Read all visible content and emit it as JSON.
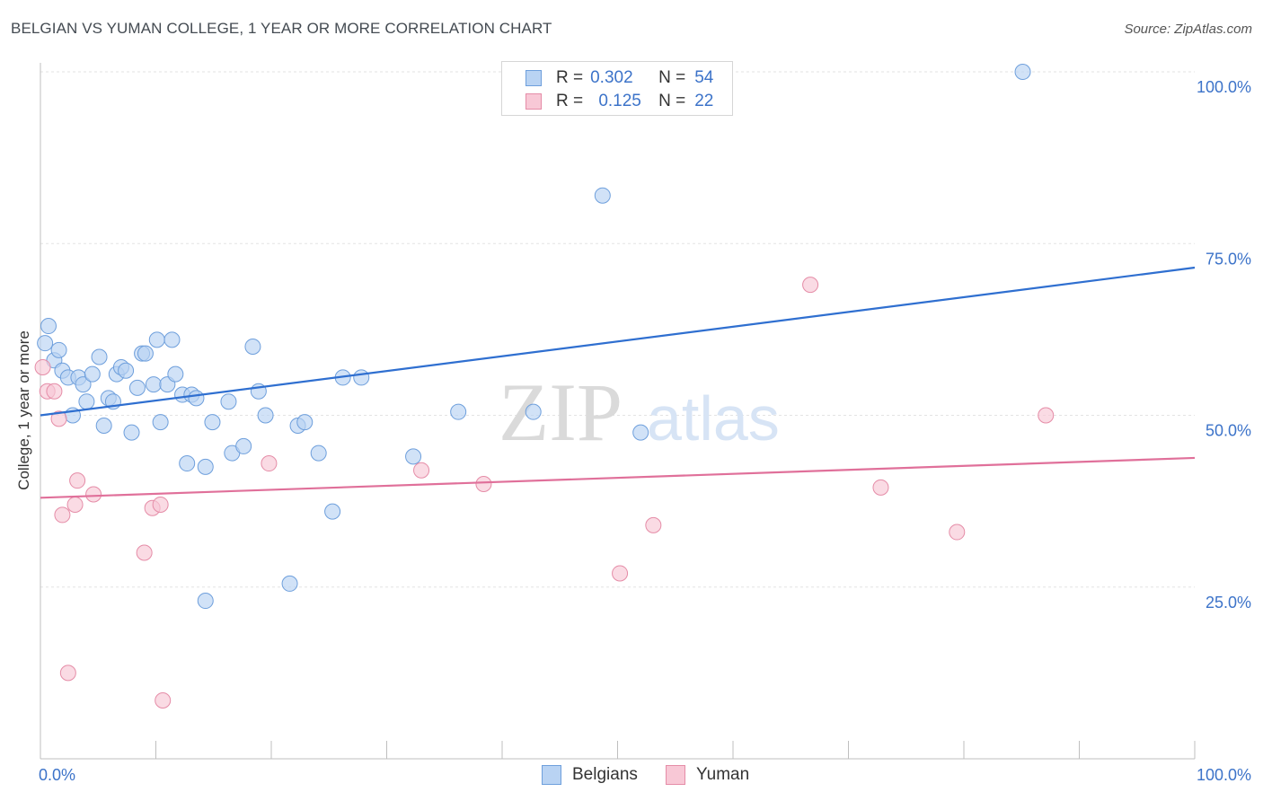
{
  "header": {
    "title": "BELGIAN VS YUMAN COLLEGE, 1 YEAR OR MORE CORRELATION CHART",
    "source": "Source: ZipAtlas.com"
  },
  "legend": {
    "r_label": "R =",
    "n_label": "N =",
    "items": [
      {
        "name": "Belgians",
        "r": "0.302",
        "n": "54"
      },
      {
        "name": "Yuman",
        "r": "0.125",
        "n": "22"
      }
    ]
  },
  "watermark": {
    "zip": "ZIP",
    "atlas": "atlas"
  },
  "colors": {
    "blue_fill": "#b9d3f3",
    "blue_stroke": "#6e9fdc",
    "blue_line": "#2f6fd0",
    "pink_fill": "#f8c8d6",
    "pink_stroke": "#e58ca7",
    "pink_line": "#e0709a",
    "tick_text": "#3c73c9",
    "grid": "#e3e3e3"
  },
  "chart_data": {
    "type": "scatter",
    "title": "BELGIAN VS YUMAN COLLEGE, 1 YEAR OR MORE CORRELATION CHART",
    "xlabel": "",
    "ylabel": "College, 1 year or more",
    "xlim": [
      0,
      100
    ],
    "ylim": [
      0,
      100
    ],
    "x_tick_labels": [
      {
        "value": 0,
        "label": "0.0%"
      },
      {
        "value": 100,
        "label": "100.0%"
      }
    ],
    "y_tick_labels": [
      {
        "value": 25,
        "label": "25.0%"
      },
      {
        "value": 50,
        "label": "50.0%"
      },
      {
        "value": 75,
        "label": "75.0%"
      },
      {
        "value": 100,
        "label": "100.0%"
      }
    ],
    "series": [
      {
        "name": "Belgians",
        "color": "#6e9fdc",
        "trend": {
          "x0": 0,
          "y0": 50.0,
          "x1": 100,
          "y1": 71.5
        },
        "points": [
          [
            0.4,
            60.5
          ],
          [
            0.7,
            63.0
          ],
          [
            1.2,
            58.0
          ],
          [
            1.6,
            59.5
          ],
          [
            1.9,
            56.5
          ],
          [
            2.4,
            55.5
          ],
          [
            2.8,
            50.0
          ],
          [
            3.3,
            55.5
          ],
          [
            3.7,
            54.5
          ],
          [
            4.0,
            52.0
          ],
          [
            4.5,
            56.0
          ],
          [
            5.1,
            58.5
          ],
          [
            5.5,
            48.5
          ],
          [
            5.9,
            52.5
          ],
          [
            6.3,
            52.0
          ],
          [
            6.6,
            56.0
          ],
          [
            7.0,
            57.0
          ],
          [
            7.4,
            56.5
          ],
          [
            7.9,
            47.5
          ],
          [
            8.4,
            54.0
          ],
          [
            8.8,
            59.0
          ],
          [
            9.1,
            59.0
          ],
          [
            9.8,
            54.5
          ],
          [
            10.1,
            61.0
          ],
          [
            10.4,
            49.0
          ],
          [
            11.0,
            54.5
          ],
          [
            11.4,
            61.0
          ],
          [
            11.7,
            56.0
          ],
          [
            12.3,
            53.0
          ],
          [
            12.7,
            43.0
          ],
          [
            13.1,
            53.0
          ],
          [
            13.5,
            52.5
          ],
          [
            14.3,
            42.5
          ],
          [
            14.3,
            23.0
          ],
          [
            14.9,
            49.0
          ],
          [
            16.3,
            52.0
          ],
          [
            16.6,
            44.5
          ],
          [
            17.6,
            45.5
          ],
          [
            18.4,
            60.0
          ],
          [
            18.9,
            53.5
          ],
          [
            19.5,
            50.0
          ],
          [
            21.6,
            25.5
          ],
          [
            22.3,
            48.5
          ],
          [
            22.9,
            49.0
          ],
          [
            24.1,
            44.5
          ],
          [
            25.3,
            36.0
          ],
          [
            26.2,
            55.5
          ],
          [
            27.8,
            55.5
          ],
          [
            32.3,
            44.0
          ],
          [
            36.2,
            50.5
          ],
          [
            42.7,
            50.5
          ],
          [
            48.7,
            82.0
          ],
          [
            52.0,
            47.5
          ],
          [
            85.1,
            100.0
          ]
        ]
      },
      {
        "name": "Yuman",
        "color": "#e58ca7",
        "trend": {
          "x0": 0,
          "y0": 38.0,
          "x1": 100,
          "y1": 43.8
        },
        "points": [
          [
            0.2,
            57.0
          ],
          [
            0.6,
            53.5
          ],
          [
            1.2,
            53.5
          ],
          [
            1.6,
            49.5
          ],
          [
            1.9,
            35.5
          ],
          [
            2.4,
            12.5
          ],
          [
            3.0,
            37.0
          ],
          [
            3.2,
            40.5
          ],
          [
            4.6,
            38.5
          ],
          [
            9.0,
            30.0
          ],
          [
            9.7,
            36.5
          ],
          [
            10.4,
            37.0
          ],
          [
            10.6,
            8.5
          ],
          [
            19.8,
            43.0
          ],
          [
            33.0,
            42.0
          ],
          [
            38.4,
            40.0
          ],
          [
            50.2,
            27.0
          ],
          [
            53.1,
            34.0
          ],
          [
            66.7,
            69.0
          ],
          [
            72.8,
            39.5
          ],
          [
            79.4,
            33.0
          ],
          [
            87.1,
            50.0
          ]
        ]
      }
    ]
  }
}
